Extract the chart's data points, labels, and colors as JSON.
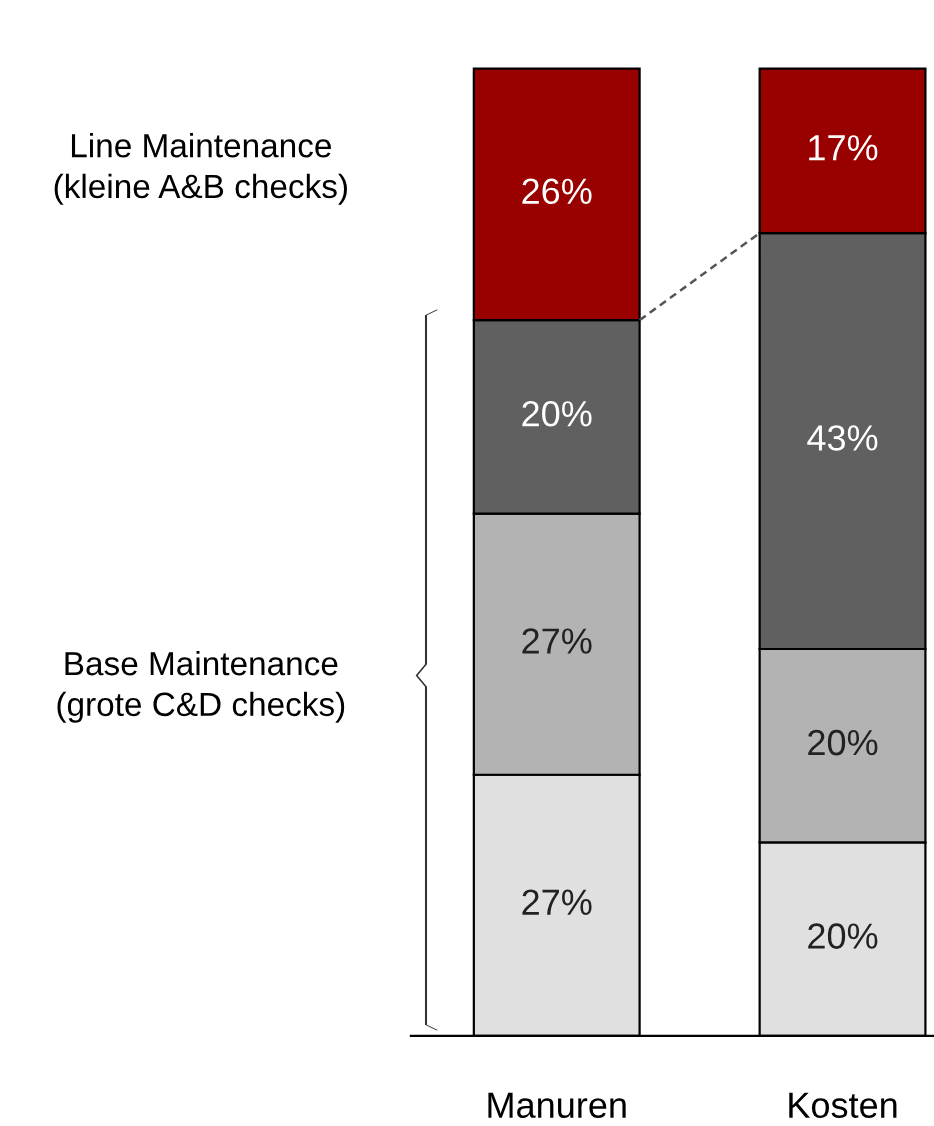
{
  "chart_data": {
    "type": "bar",
    "stacked": true,
    "categories": [
      "Manuren",
      "Kosten"
    ],
    "series": [
      {
        "color": "#e0e0e0",
        "values": [
          27,
          20
        ],
        "value_labels": [
          "27%",
          "20%"
        ]
      },
      {
        "color": "#b3b3b3",
        "values": [
          27,
          20
        ],
        "value_labels": [
          "27%",
          "20%"
        ]
      },
      {
        "color": "#606060",
        "values": [
          20,
          43
        ],
        "value_labels": [
          "20%",
          "43%"
        ]
      },
      {
        "color": "#990000",
        "values": [
          26,
          17
        ],
        "value_labels": [
          "26%",
          "17%"
        ]
      }
    ],
    "annotations": [
      "Line Maintenance\n(kleine A&B checks)",
      "Base Maintenance\n(grote C&D checks)"
    ],
    "grid": false,
    "legend": false
  }
}
